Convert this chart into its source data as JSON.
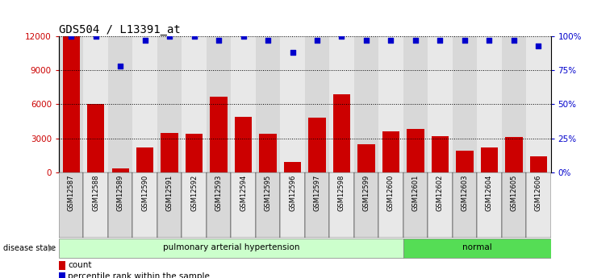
{
  "title": "GDS504 / L13391_at",
  "categories": [
    "GSM12587",
    "GSM12588",
    "GSM12589",
    "GSM12590",
    "GSM12591",
    "GSM12592",
    "GSM12593",
    "GSM12594",
    "GSM12595",
    "GSM12596",
    "GSM12597",
    "GSM12598",
    "GSM12599",
    "GSM12600",
    "GSM12601",
    "GSM12602",
    "GSM12603",
    "GSM12604",
    "GSM12605",
    "GSM12606"
  ],
  "bar_values": [
    12000,
    6050,
    350,
    2200,
    3500,
    3400,
    6700,
    4900,
    3400,
    950,
    4800,
    6900,
    2500,
    3600,
    3800,
    3200,
    1900,
    2200,
    3100,
    1400
  ],
  "dot_values": [
    100,
    100,
    78,
    97,
    100,
    100,
    97,
    100,
    97,
    88,
    97,
    100,
    97,
    97,
    97,
    97,
    97,
    97,
    97,
    93
  ],
  "bar_color": "#cc0000",
  "dot_color": "#0000cc",
  "ylim_left": [
    0,
    12000
  ],
  "ylim_right": [
    0,
    100
  ],
  "yticks_left": [
    0,
    3000,
    6000,
    9000,
    12000
  ],
  "ytick_labels_left": [
    "0",
    "3000",
    "6000",
    "9000",
    "12000"
  ],
  "yticks_right": [
    0,
    25,
    50,
    75,
    100
  ],
  "ytick_labels_right": [
    "0%",
    "25%",
    "50%",
    "75%",
    "100%"
  ],
  "group1_label": "pulmonary arterial hypertension",
  "group1_count": 14,
  "group2_label": "normal",
  "group2_count": 6,
  "disease_state_label": "disease state",
  "group1_color": "#ccffcc",
  "group2_color": "#55dd55",
  "legend_count_label": "count",
  "legend_percentile_label": "percentile rank within the sample",
  "title_fontsize": 10,
  "tick_fontsize": 7.5,
  "bar_width": 0.7,
  "col_colors": [
    "#d8d8d8",
    "#e8e8e8"
  ]
}
